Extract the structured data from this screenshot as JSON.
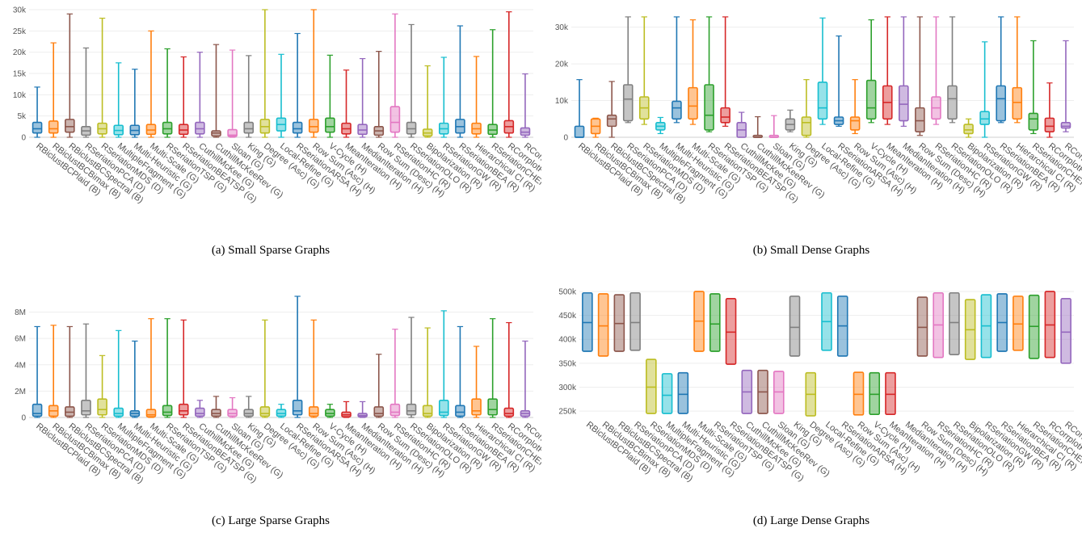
{
  "methods": [
    "RBiclustBCPlaid (B)",
    "RBiclustBCBimax (B)",
    "RBiclustBCSpectral (B)",
    "RSeriationPCA (D)",
    "RSeriationMDS (D)",
    "MultipleFragment (G)",
    "Multi-Heuristic (G)",
    "Multi-Scale (G)",
    "RSeriationTSP (G)",
    "RSeriationBEATSP (G)",
    "CuthillMcKee (G)",
    "CuthillMcKeeRev (G)",
    "Sloan (G)",
    "King (G)",
    "Degree (Asc) (G)",
    "Local-Refine (G)",
    "RSeriationARSA (H)",
    "Row Sum (Asc) (H)",
    "V-Cycle (H)",
    "MeanIteration (H)",
    "MedianIteration (H)",
    "Row Sum (Desc) (H)",
    "RSeriationHC (R)",
    "RSeriationOLO (R)",
    "Bipolarization (R)",
    "RSeriationGW (R)",
    "RSeriationBEA (R)",
    "Hierarchical CI (R)",
    "RSeriationCHEN (S)",
    "RCorrplotFPC (S)",
    "RCorrplotAOE (S)"
  ],
  "colors": [
    "#1f77b4",
    "#ff7f0e",
    "#8c564b",
    "#7f7f7f",
    "#bcbd22",
    "#17becf",
    "#1f77b4",
    "#ff7f0e",
    "#2ca02c",
    "#d62728",
    "#9467bd",
    "#8c564b",
    "#e377c2",
    "#7f7f7f",
    "#bcbd22",
    "#17becf",
    "#1f77b4",
    "#ff7f0e",
    "#2ca02c",
    "#d62728",
    "#9467bd",
    "#8c564b",
    "#e377c2",
    "#7f7f7f",
    "#bcbd22",
    "#17becf",
    "#1f77b4",
    "#ff7f0e",
    "#2ca02c",
    "#d62728",
    "#9467bd"
  ],
  "captions": {
    "a": "(a)  Small Sparse Graphs",
    "b": "(b)  Small Dense Graphs",
    "c": "(c)  Large Sparse Graphs",
    "d": "(d)  Large Dense Graphs"
  },
  "chart_data": [
    {
      "id": "a",
      "type": "box",
      "title": "(a)  Small Sparse Graphs",
      "ylim": [
        0,
        30000
      ],
      "yticks": [
        0,
        5000,
        10000,
        15000,
        20000,
        25000,
        30000
      ],
      "ytick_labels": [
        "0",
        "5k",
        "10k",
        "15k",
        "20k",
        "25k",
        "30k"
      ],
      "categories_per_panel": 31,
      "boxes": [
        [
          0,
          1000,
          2000,
          3500,
          11800
        ],
        [
          0,
          1000,
          2000,
          3800,
          22200
        ],
        [
          0,
          1200,
          2500,
          4200,
          29000
        ],
        [
          0,
          500,
          1500,
          2500,
          21000
        ],
        [
          0,
          800,
          2000,
          3300,
          28000
        ],
        [
          0,
          600,
          1600,
          2800,
          17500
        ],
        [
          0,
          600,
          1600,
          2800,
          16000
        ],
        [
          0,
          700,
          1700,
          3000,
          25000
        ],
        [
          0,
          800,
          2000,
          3500,
          20800
        ],
        [
          0,
          700,
          1700,
          3000,
          18900
        ],
        [
          0,
          800,
          2000,
          3500,
          20000
        ],
        [
          0,
          300,
          1000,
          1500,
          21800
        ],
        [
          0,
          200,
          500,
          1800,
          20500
        ],
        [
          0,
          1000,
          2000,
          3500,
          19200
        ],
        [
          0,
          1000,
          2500,
          4200,
          30000
        ],
        [
          0,
          1500,
          3000,
          4500,
          19500
        ],
        [
          0,
          1000,
          2000,
          3500,
          24400
        ],
        [
          0,
          1200,
          2500,
          4200,
          30000
        ],
        [
          0,
          1200,
          2500,
          4500,
          19300
        ],
        [
          0,
          800,
          2000,
          3300,
          15800
        ],
        [
          0,
          700,
          1700,
          3000,
          18500
        ],
        [
          0,
          500,
          1500,
          2500,
          20200
        ],
        [
          0,
          1200,
          3500,
          7200,
          29000
        ],
        [
          0,
          800,
          2000,
          3500,
          26500
        ],
        [
          0,
          300,
          1000,
          1900,
          16800
        ],
        [
          0,
          800,
          2000,
          3300,
          18800
        ],
        [
          0,
          1000,
          2500,
          4200,
          26200
        ],
        [
          0,
          800,
          2000,
          3300,
          19000
        ],
        [
          0,
          700,
          1700,
          3000,
          25300
        ],
        [
          0,
          1000,
          2500,
          3900,
          29500
        ],
        [
          0,
          500,
          1200,
          2200,
          14900
        ]
      ]
    },
    {
      "id": "b",
      "type": "box",
      "title": "(b)  Small Dense Graphs",
      "ylim": [
        0,
        33000
      ],
      "yticks": [
        0,
        10000,
        20000,
        30000
      ],
      "ytick_labels": [
        "0",
        "10k",
        "20k",
        "30k"
      ],
      "boxes": [
        [
          0,
          0,
          0,
          3000,
          15700
        ],
        [
          0,
          1000,
          3000,
          5000,
          5200
        ],
        [
          0,
          3000,
          5000,
          6000,
          15200
        ],
        [
          4000,
          4500,
          10400,
          14300,
          32800
        ],
        [
          3500,
          5000,
          8000,
          11000,
          32800
        ],
        [
          1000,
          2000,
          3000,
          4000,
          5400
        ],
        [
          4000,
          5000,
          8000,
          9800,
          32800
        ],
        [
          3500,
          5000,
          8500,
          13500,
          32000
        ],
        [
          1500,
          2000,
          6000,
          14300,
          32800
        ],
        [
          3000,
          4000,
          5500,
          8000,
          32800
        ],
        [
          0,
          0,
          2000,
          4000,
          6800
        ],
        [
          0,
          0,
          0,
          500,
          5600
        ],
        [
          0,
          0,
          0,
          500,
          5900
        ],
        [
          1500,
          2000,
          3500,
          5000,
          7400
        ],
        [
          0,
          500,
          4000,
          5500,
          15700
        ],
        [
          3500,
          5000,
          8000,
          15000,
          32500
        ],
        [
          3000,
          3500,
          4500,
          5500,
          27600
        ],
        [
          1000,
          2000,
          4500,
          5500,
          15700
        ],
        [
          4000,
          5000,
          8000,
          15500,
          32000
        ],
        [
          3500,
          5000,
          9500,
          14000,
          32800
        ],
        [
          3000,
          4500,
          9000,
          14000,
          32800
        ],
        [
          500,
          1500,
          4500,
          8000,
          32800
        ],
        [
          3500,
          5000,
          8000,
          11000,
          32800
        ],
        [
          4000,
          5000,
          10500,
          14000,
          32800
        ],
        [
          0,
          1000,
          2000,
          3500,
          5000
        ],
        [
          0,
          3500,
          5000,
          7000,
          26000
        ],
        [
          4000,
          4500,
          10500,
          14000,
          32800
        ],
        [
          4000,
          5000,
          9500,
          13500,
          32800
        ],
        [
          1000,
          2000,
          5000,
          6500,
          26300
        ],
        [
          0,
          1500,
          3000,
          5200,
          14800
        ],
        [
          1500,
          2500,
          3000,
          4000,
          26300
        ]
      ]
    },
    {
      "id": "c",
      "type": "box",
      "title": "(c)  Large Sparse Graphs",
      "ylim": [
        0,
        8400000
      ],
      "yticks": [
        0,
        2000000,
        4000000,
        6000000,
        8000000
      ],
      "ytick_labels": [
        "0",
        "2M",
        "4M",
        "6M",
        "8M"
      ],
      "boxes": [
        [
          0,
          100000,
          300000,
          1000000,
          6900000
        ],
        [
          0,
          100000,
          500000,
          900000,
          7000000
        ],
        [
          0,
          100000,
          400000,
          800000,
          6900000
        ],
        [
          0,
          200000,
          500000,
          1300000,
          7100000
        ],
        [
          0,
          200000,
          600000,
          1400000,
          4700000
        ],
        [
          0,
          100000,
          300000,
          700000,
          6600000
        ],
        [
          0,
          100000,
          300000,
          500000,
          5800000
        ],
        [
          0,
          50000,
          200000,
          600000,
          7500000
        ],
        [
          0,
          150000,
          400000,
          900000,
          7500000
        ],
        [
          0,
          200000,
          500000,
          1000000,
          7400000
        ],
        [
          0,
          100000,
          300000,
          700000,
          1300000
        ],
        [
          0,
          100000,
          300000,
          600000,
          1600000
        ],
        [
          0,
          100000,
          300000,
          600000,
          1500000
        ],
        [
          0,
          100000,
          300000,
          600000,
          1600000
        ],
        [
          0,
          100000,
          300000,
          800000,
          7400000
        ],
        [
          0,
          100000,
          300000,
          600000,
          1000000
        ],
        [
          0,
          200000,
          500000,
          1300000,
          9200000
        ],
        [
          0,
          100000,
          300000,
          800000,
          7400000
        ],
        [
          0,
          100000,
          300000,
          600000,
          1000000
        ],
        [
          0,
          50000,
          200000,
          400000,
          1200000
        ],
        [
          0,
          50000,
          150000,
          300000,
          1200000
        ],
        [
          0,
          100000,
          300000,
          800000,
          4800000
        ],
        [
          0,
          150000,
          400000,
          1000000,
          6700000
        ],
        [
          0,
          200000,
          500000,
          1000000,
          7600000
        ],
        [
          0,
          100000,
          300000,
          900000,
          6800000
        ],
        [
          0,
          150000,
          400000,
          1300000,
          8100000
        ],
        [
          0,
          100000,
          400000,
          900000,
          6900000
        ],
        [
          0,
          200000,
          500000,
          1400000,
          5400000
        ],
        [
          0,
          200000,
          600000,
          1400000,
          7500000
        ],
        [
          0,
          100000,
          300000,
          700000,
          7200000
        ],
        [
          0,
          100000,
          300000,
          500000,
          5800000
        ]
      ]
    },
    {
      "id": "d",
      "type": "box",
      "title": "(d)  Large Dense Graphs",
      "ylim": [
        240000,
        505000
      ],
      "yticks": [
        250000,
        300000,
        350000,
        400000,
        450000,
        500000
      ],
      "ytick_labels": [
        "250k",
        "300k",
        "350k",
        "400k",
        "450k",
        "500k"
      ],
      "boxes": [
        [
          375000,
          375000,
          435000,
          497000,
          497000
        ],
        [
          365000,
          365000,
          428000,
          495000,
          495000
        ],
        [
          375000,
          375000,
          433000,
          493000,
          493000
        ],
        [
          377000,
          377000,
          435000,
          497000,
          497000
        ],
        [
          245000,
          245000,
          300000,
          358000,
          358000
        ],
        [
          245000,
          245000,
          283000,
          328000,
          328000
        ],
        [
          245000,
          245000,
          285000,
          330000,
          330000
        ],
        [
          375000,
          375000,
          438000,
          500000,
          500000
        ],
        [
          375000,
          375000,
          432000,
          495000,
          495000
        ],
        [
          348000,
          348000,
          415000,
          485000,
          485000
        ],
        [
          245000,
          245000,
          290000,
          335000,
          335000
        ],
        [
          245000,
          245000,
          290000,
          335000,
          335000
        ],
        [
          245000,
          245000,
          290000,
          333000,
          333000
        ],
        [
          365000,
          365000,
          425000,
          490000,
          490000
        ],
        [
          240000,
          240000,
          285000,
          330000,
          330000
        ],
        [
          377000,
          377000,
          437000,
          497000,
          497000
        ],
        [
          365000,
          365000,
          428000,
          490000,
          490000
        ],
        [
          242000,
          242000,
          285000,
          331000,
          331000
        ],
        [
          243000,
          243000,
          285000,
          330000,
          330000
        ],
        [
          243000,
          243000,
          285000,
          330000,
          330000
        ],
        [
          365000,
          365000,
          425000,
          488000,
          488000
        ],
        [
          362000,
          362000,
          430000,
          497000,
          497000
        ],
        [
          368000,
          368000,
          435000,
          497000,
          497000
        ],
        [
          358000,
          358000,
          420000,
          483000,
          483000
        ],
        [
          362000,
          362000,
          428000,
          493000,
          493000
        ],
        [
          375000,
          375000,
          435000,
          495000,
          495000
        ],
        [
          377000,
          377000,
          432000,
          490000,
          490000
        ],
        [
          360000,
          360000,
          427000,
          492000,
          492000
        ],
        [
          362000,
          362000,
          430000,
          500000,
          500000
        ],
        [
          350000,
          350000,
          415000,
          485000,
          485000
        ]
      ],
      "box_slots": [
        0,
        1,
        2,
        3,
        4,
        5,
        6,
        7,
        8,
        9,
        10,
        11,
        12,
        13,
        14,
        15,
        16,
        17,
        18,
        19,
        21,
        22,
        23,
        24,
        25,
        26,
        27,
        28,
        29,
        30
      ]
    }
  ]
}
